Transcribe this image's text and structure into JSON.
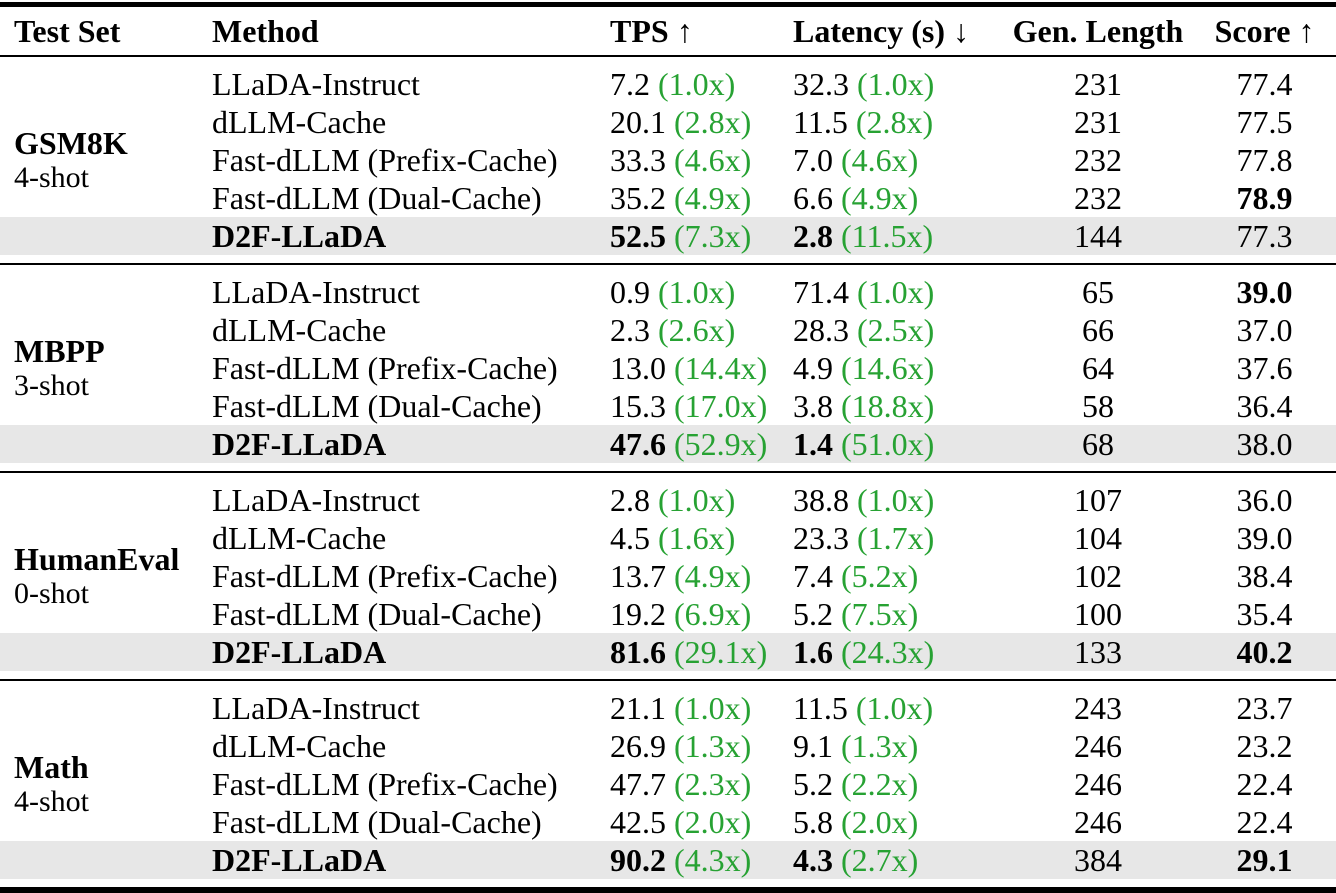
{
  "table": {
    "header": {
      "test_set": "Test Set",
      "method": "Method",
      "tps": "TPS ↑",
      "latency": "Latency (s) ↓",
      "gen_length": "Gen. Length",
      "score": "Score ↑"
    },
    "sections": [
      {
        "test_set": "GSM8K",
        "shots": "4-shot",
        "rows": [
          {
            "method": "LLaDA-Instruct",
            "tps": "7.2",
            "tps_mult": "(1.0x)",
            "latency": "32.3",
            "latency_mult": "(1.0x)",
            "gen_length": "231",
            "score": "77.4",
            "highlight": false,
            "bold_score": false
          },
          {
            "method": "dLLM-Cache",
            "tps": "20.1",
            "tps_mult": "(2.8x)",
            "latency": "11.5",
            "latency_mult": "(2.8x)",
            "gen_length": "231",
            "score": "77.5",
            "highlight": false,
            "bold_score": false
          },
          {
            "method": "Fast-dLLM (Prefix-Cache)",
            "tps": "33.3",
            "tps_mult": "(4.6x)",
            "latency": "7.0",
            "latency_mult": "(4.6x)",
            "gen_length": "232",
            "score": "77.8",
            "highlight": false,
            "bold_score": false
          },
          {
            "method": "Fast-dLLM (Dual-Cache)",
            "tps": "35.2",
            "tps_mult": "(4.9x)",
            "latency": "6.6",
            "latency_mult": "(4.9x)",
            "gen_length": "232",
            "score": "78.9",
            "highlight": false,
            "bold_score": true
          },
          {
            "method": "D2F-LLaDA",
            "tps": "52.5",
            "tps_mult": "(7.3x)",
            "latency": "2.8",
            "latency_mult": "(11.5x)",
            "gen_length": "144",
            "score": "77.3",
            "highlight": true,
            "bold_score": false
          }
        ]
      },
      {
        "test_set": "MBPP",
        "shots": "3-shot",
        "rows": [
          {
            "method": "LLaDA-Instruct",
            "tps": "0.9",
            "tps_mult": "(1.0x)",
            "latency": "71.4",
            "latency_mult": "(1.0x)",
            "gen_length": "65",
            "score": "39.0",
            "highlight": false,
            "bold_score": true
          },
          {
            "method": "dLLM-Cache",
            "tps": "2.3",
            "tps_mult": "(2.6x)",
            "latency": "28.3",
            "latency_mult": "(2.5x)",
            "gen_length": "66",
            "score": "37.0",
            "highlight": false,
            "bold_score": false
          },
          {
            "method": "Fast-dLLM (Prefix-Cache)",
            "tps": "13.0",
            "tps_mult": "(14.4x)",
            "latency": "4.9",
            "latency_mult": "(14.6x)",
            "gen_length": "64",
            "score": "37.6",
            "highlight": false,
            "bold_score": false
          },
          {
            "method": "Fast-dLLM (Dual-Cache)",
            "tps": "15.3",
            "tps_mult": "(17.0x)",
            "latency": "3.8",
            "latency_mult": "(18.8x)",
            "gen_length": "58",
            "score": "36.4",
            "highlight": false,
            "bold_score": false
          },
          {
            "method": "D2F-LLaDA",
            "tps": "47.6",
            "tps_mult": "(52.9x)",
            "latency": "1.4",
            "latency_mult": "(51.0x)",
            "gen_length": "68",
            "score": "38.0",
            "highlight": true,
            "bold_score": false
          }
        ]
      },
      {
        "test_set": "HumanEval",
        "shots": "0-shot",
        "rows": [
          {
            "method": "LLaDA-Instruct",
            "tps": "2.8",
            "tps_mult": "(1.0x)",
            "latency": "38.8",
            "latency_mult": "(1.0x)",
            "gen_length": "107",
            "score": "36.0",
            "highlight": false,
            "bold_score": false
          },
          {
            "method": "dLLM-Cache",
            "tps": "4.5",
            "tps_mult": "(1.6x)",
            "latency": "23.3",
            "latency_mult": "(1.7x)",
            "gen_length": "104",
            "score": "39.0",
            "highlight": false,
            "bold_score": false
          },
          {
            "method": "Fast-dLLM (Prefix-Cache)",
            "tps": "13.7",
            "tps_mult": "(4.9x)",
            "latency": "7.4",
            "latency_mult": "(5.2x)",
            "gen_length": "102",
            "score": "38.4",
            "highlight": false,
            "bold_score": false
          },
          {
            "method": "Fast-dLLM (Dual-Cache)",
            "tps": "19.2",
            "tps_mult": "(6.9x)",
            "latency": "5.2",
            "latency_mult": "(7.5x)",
            "gen_length": "100",
            "score": "35.4",
            "highlight": false,
            "bold_score": false
          },
          {
            "method": "D2F-LLaDA",
            "tps": "81.6",
            "tps_mult": "(29.1x)",
            "latency": "1.6",
            "latency_mult": "(24.3x)",
            "gen_length": "133",
            "score": "40.2",
            "highlight": true,
            "bold_score": true
          }
        ]
      },
      {
        "test_set": "Math",
        "shots": "4-shot",
        "rows": [
          {
            "method": "LLaDA-Instruct",
            "tps": "21.1",
            "tps_mult": "(1.0x)",
            "latency": "11.5",
            "latency_mult": "(1.0x)",
            "gen_length": "243",
            "score": "23.7",
            "highlight": false,
            "bold_score": false
          },
          {
            "method": "dLLM-Cache",
            "tps": "26.9",
            "tps_mult": "(1.3x)",
            "latency": "9.1",
            "latency_mult": "(1.3x)",
            "gen_length": "246",
            "score": "23.2",
            "highlight": false,
            "bold_score": false
          },
          {
            "method": "Fast-dLLM (Prefix-Cache)",
            "tps": "47.7",
            "tps_mult": "(2.3x)",
            "latency": "5.2",
            "latency_mult": "(2.2x)",
            "gen_length": "246",
            "score": "22.4",
            "highlight": false,
            "bold_score": false
          },
          {
            "method": "Fast-dLLM (Dual-Cache)",
            "tps": "42.5",
            "tps_mult": "(2.0x)",
            "latency": "5.8",
            "latency_mult": "(2.0x)",
            "gen_length": "246",
            "score": "22.4",
            "highlight": false,
            "bold_score": false
          },
          {
            "method": "D2F-LLaDA",
            "tps": "90.2",
            "tps_mult": "(4.3x)",
            "latency": "4.3",
            "latency_mult": "(2.7x)",
            "gen_length": "384",
            "score": "29.1",
            "highlight": true,
            "bold_score": true
          }
        ]
      }
    ]
  },
  "colors": {
    "multiplier_green": "#27a233",
    "highlight_row_bg": "#e7e7e7",
    "rule_black": "#000000"
  }
}
